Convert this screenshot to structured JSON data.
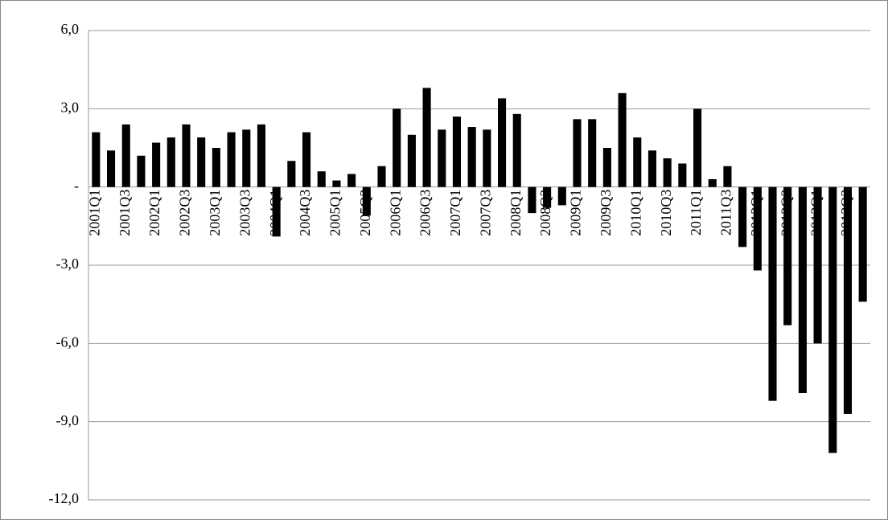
{
  "chart_data": {
    "type": "bar",
    "categories": [
      "2001Q1",
      null,
      "2001Q3",
      null,
      "2002Q1",
      null,
      "2002Q3",
      null,
      "2003Q1",
      null,
      "2003Q3",
      null,
      "2004Q1",
      null,
      "2004Q3",
      null,
      "2005Q1",
      null,
      "2005Q3",
      null,
      "2006Q1",
      null,
      "2006Q3",
      null,
      "2007Q1",
      null,
      "2007Q3",
      null,
      "2008Q1",
      null,
      "2008Q3",
      null,
      "2009Q1",
      null,
      "2009Q3",
      null,
      "2010Q1",
      null,
      "2010Q3",
      null,
      "2011Q1",
      null,
      "2011Q3",
      null,
      "2012Q1",
      null,
      "2012Q3",
      null,
      "2013Q1",
      null,
      "2013Q3",
      null
    ],
    "values": [
      2.1,
      1.4,
      2.4,
      1.2,
      1.7,
      1.9,
      2.4,
      1.9,
      1.5,
      2.1,
      2.2,
      2.4,
      -1.9,
      1.0,
      2.1,
      0.6,
      0.25,
      0.5,
      -1.1,
      0.8,
      3.0,
      2.0,
      3.8,
      2.2,
      2.7,
      2.3,
      2.2,
      3.4,
      2.8,
      -1.0,
      -0.8,
      -0.7,
      2.6,
      2.6,
      1.5,
      3.6,
      1.9,
      1.4,
      1.1,
      0.9,
      3.0,
      0.3,
      0.8,
      -2.3,
      -3.2,
      -8.2,
      -5.3,
      -7.9,
      -6.0,
      -10.2,
      -8.7,
      -4.4
    ],
    "color": "#000000",
    "ylim": [
      -12,
      6
    ],
    "yticks": [
      {
        "value": -12,
        "label": "-12,0"
      },
      {
        "value": -9,
        "label": "-9,0"
      },
      {
        "value": -6,
        "label": "-6,0"
      },
      {
        "value": -3,
        "label": "-3,0"
      },
      {
        "value": 0,
        "label": "-"
      },
      {
        "value": 3,
        "label": "3,0"
      },
      {
        "value": 6,
        "label": "6,0"
      }
    ],
    "grid": true
  }
}
